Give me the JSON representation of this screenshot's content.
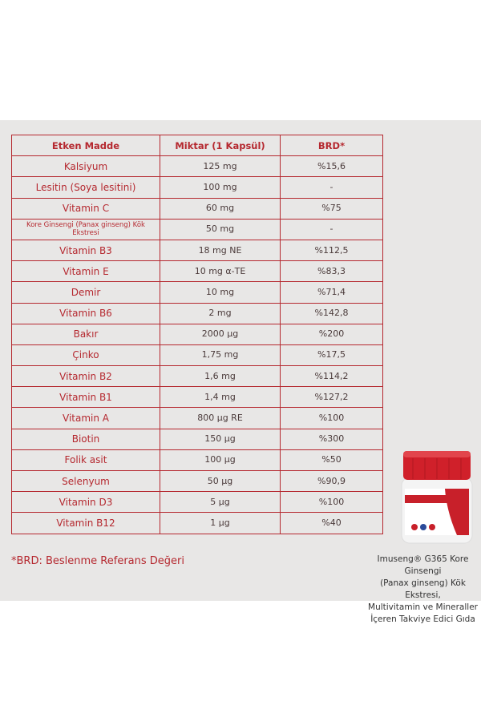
{
  "table": {
    "header": [
      "Etken Madde",
      "Miktar (1 Kapsül)",
      "BRD*"
    ],
    "rows": [
      [
        "Kalsiyum",
        "125 mg",
        "%15,6"
      ],
      [
        "Lesitin (Soya lesitini)",
        "100 mg",
        "-"
      ],
      [
        "Vitamin C",
        "60 mg",
        "%75"
      ],
      [
        "Kore Ginsengi (Panax ginseng) Kök Ekstresi",
        "50 mg",
        "-"
      ],
      [
        "Vitamin B3",
        "18 mg NE",
        "%112,5"
      ],
      [
        "Vitamin E",
        "10 mg α-TE",
        "%83,3"
      ],
      [
        "Demir",
        "10 mg",
        "%71,4"
      ],
      [
        "Vitamin B6",
        "2 mg",
        "%142,8"
      ],
      [
        "Bakır",
        "2000 µg",
        "%200"
      ],
      [
        "Çinko",
        "1,75 mg",
        "%17,5"
      ],
      [
        "Vitamin B2",
        "1,6 mg",
        "%114,2"
      ],
      [
        "Vitamin B1",
        "1,4 mg",
        "%127,2"
      ],
      [
        "Vitamin A",
        "800 µg RE",
        "%100"
      ],
      [
        "Biotin",
        "150 µg",
        "%300"
      ],
      [
        "Folik asit",
        "100 µg",
        "%50"
      ],
      [
        "Selenyum",
        "50 µg",
        "%90,9"
      ],
      [
        "Vitamin D3",
        "5 µg",
        "%100"
      ],
      [
        "Vitamin B12",
        "1 µg",
        "%40"
      ]
    ]
  },
  "footnote": "*BRD: Beslenme Referans Değeri",
  "product": {
    "caption": [
      "Imuseng® G365 Kore Ginsengi",
      "(Panax ginseng) Kök Ekstresi,",
      "Multivitamin ve Mineraller",
      "İçeren Takviye Edici Gıda"
    ]
  }
}
